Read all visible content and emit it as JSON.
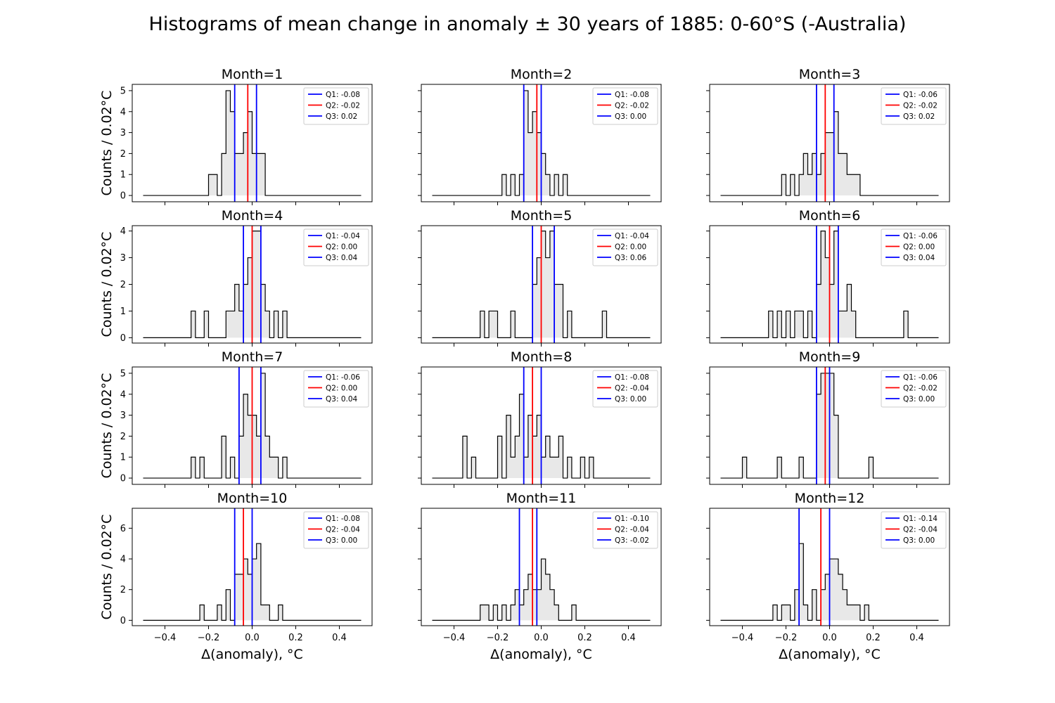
{
  "figure_title": "Histograms of mean change in anomaly ± 30 years of 1885: 0-60°S (-Australia)",
  "chart_data": {
    "type": "histogram",
    "title": "Histograms of mean change in anomaly ± 30 years of 1885: 0-60°S (-Australia)",
    "xlabel": "Δ(anomaly), °C",
    "ylabel": "Counts / 0.02°C",
    "xlim": [
      -0.55,
      0.55
    ],
    "xticks": [
      -0.4,
      -0.2,
      0.0,
      0.2,
      0.4
    ],
    "xtick_labels": [
      "−0.4",
      "−0.2",
      "0.0",
      "0.2",
      "0.4"
    ],
    "bin_start": -0.5,
    "bin_width": 0.02,
    "legend_placement": "upper right",
    "colors": {
      "median": "#ff0000",
      "quartiles": "#0000ff",
      "fill": "#e8e8e8",
      "outline": "#000000"
    },
    "rows": [
      {
        "ylim": [
          -0.3,
          5.3
        ],
        "yticks": [
          0,
          1,
          2,
          3,
          4,
          5
        ],
        "ytick_labels": [
          "0",
          "1",
          "2",
          "3",
          "4",
          "5"
        ]
      },
      {
        "ylim": [
          -0.2,
          4.2
        ],
        "yticks": [
          0,
          1,
          2,
          3,
          4
        ],
        "ytick_labels": [
          "0",
          "1",
          "2",
          "3",
          "4"
        ]
      },
      {
        "ylim": [
          -0.3,
          5.3
        ],
        "yticks": [
          0,
          1,
          2,
          3,
          4,
          5
        ],
        "ytick_labels": [
          "0",
          "1",
          "2",
          "3",
          "4",
          "5"
        ]
      },
      {
        "ylim": [
          -0.35,
          7.3
        ],
        "yticks": [
          0,
          2,
          4,
          6
        ],
        "ytick_labels": [
          "0",
          "2",
          "4",
          "6"
        ]
      }
    ],
    "panels": [
      {
        "title": "Month=1",
        "q1": -0.08,
        "q2": -0.02,
        "q3": 0.02,
        "legend": [
          "Q1: -0.08",
          "Q2: -0.02",
          "Q3: 0.02"
        ],
        "counts": [
          [
            -0.2,
            1
          ],
          [
            -0.18,
            1
          ],
          [
            -0.14,
            2
          ],
          [
            -0.12,
            5
          ],
          [
            -0.1,
            4
          ],
          [
            -0.08,
            2
          ],
          [
            -0.06,
            2
          ],
          [
            -0.04,
            3
          ],
          [
            -0.02,
            4
          ],
          [
            0,
            2
          ],
          [
            0.02,
            2
          ],
          [
            0.04,
            2
          ]
        ]
      },
      {
        "title": "Month=2",
        "q1": -0.08,
        "q2": -0.02,
        "q3": 0.0,
        "legend": [
          "Q1: -0.08",
          "Q2: -0.02",
          "Q3: 0.00"
        ],
        "counts": [
          [
            -0.18,
            1
          ],
          [
            -0.14,
            1
          ],
          [
            -0.1,
            1
          ],
          [
            -0.08,
            5
          ],
          [
            -0.06,
            3
          ],
          [
            -0.04,
            4
          ],
          [
            -0.02,
            3
          ],
          [
            0,
            2
          ],
          [
            0.02,
            1
          ],
          [
            0.06,
            1
          ],
          [
            0.1,
            1
          ]
        ]
      },
      {
        "title": "Month=3",
        "q1": -0.06,
        "q2": -0.02,
        "q3": 0.02,
        "legend": [
          "Q1: -0.06",
          "Q2: -0.02",
          "Q3: 0.02"
        ],
        "counts": [
          [
            -0.22,
            1
          ],
          [
            -0.18,
            1
          ],
          [
            -0.14,
            1
          ],
          [
            -0.12,
            2
          ],
          [
            -0.1,
            1
          ],
          [
            -0.08,
            2
          ],
          [
            -0.06,
            1
          ],
          [
            -0.04,
            2
          ],
          [
            -0.02,
            3
          ],
          [
            0,
            3
          ],
          [
            0.02,
            4
          ],
          [
            0.04,
            2
          ],
          [
            0.06,
            2
          ],
          [
            0.08,
            1
          ],
          [
            0.1,
            1
          ],
          [
            0.12,
            1
          ]
        ]
      },
      {
        "title": "Month=4",
        "q1": -0.04,
        "q2": 0.0,
        "q3": 0.04,
        "legend": [
          "Q1: -0.04",
          "Q2: 0.00",
          "Q3: 0.04"
        ],
        "counts": [
          [
            -0.28,
            1
          ],
          [
            -0.22,
            1
          ],
          [
            -0.12,
            1
          ],
          [
            -0.1,
            1
          ],
          [
            -0.08,
            2
          ],
          [
            -0.06,
            1
          ],
          [
            -0.04,
            2
          ],
          [
            -0.02,
            3
          ],
          [
            0,
            4
          ],
          [
            0.02,
            4
          ],
          [
            0.04,
            2
          ],
          [
            0.06,
            1
          ],
          [
            0.1,
            1
          ],
          [
            0.14,
            1
          ]
        ]
      },
      {
        "title": "Month=5",
        "q1": -0.04,
        "q2": 0.0,
        "q3": 0.06,
        "legend": [
          "Q1: -0.04",
          "Q2: 0.00",
          "Q3: 0.06"
        ],
        "counts": [
          [
            -0.28,
            1
          ],
          [
            -0.24,
            1
          ],
          [
            -0.22,
            1
          ],
          [
            -0.14,
            1
          ],
          [
            -0.04,
            2
          ],
          [
            -0.02,
            3
          ],
          [
            0,
            4
          ],
          [
            0.02,
            3
          ],
          [
            0.04,
            4
          ],
          [
            0.06,
            2
          ],
          [
            0.08,
            2
          ],
          [
            0.12,
            1
          ],
          [
            0.28,
            1
          ]
        ]
      },
      {
        "title": "Month=6",
        "q1": -0.06,
        "q2": 0.0,
        "q3": 0.04,
        "legend": [
          "Q1: -0.06",
          "Q2: 0.00",
          "Q3: 0.04"
        ],
        "counts": [
          [
            -0.28,
            1
          ],
          [
            -0.24,
            1
          ],
          [
            -0.2,
            1
          ],
          [
            -0.16,
            1
          ],
          [
            -0.14,
            1
          ],
          [
            -0.1,
            1
          ],
          [
            -0.06,
            2
          ],
          [
            -0.04,
            4
          ],
          [
            -0.02,
            3
          ],
          [
            0,
            2
          ],
          [
            0.02,
            4
          ],
          [
            0.04,
            1
          ],
          [
            0.06,
            1
          ],
          [
            0.08,
            2
          ],
          [
            0.1,
            1
          ],
          [
            0.34,
            1
          ]
        ]
      },
      {
        "title": "Month=7",
        "q1": -0.06,
        "q2": 0.0,
        "q3": 0.04,
        "legend": [
          "Q1: -0.06",
          "Q2: 0.00",
          "Q3: 0.04"
        ],
        "counts": [
          [
            -0.28,
            1
          ],
          [
            -0.24,
            1
          ],
          [
            -0.14,
            2
          ],
          [
            -0.1,
            1
          ],
          [
            -0.06,
            2
          ],
          [
            -0.04,
            4
          ],
          [
            -0.02,
            3
          ],
          [
            0,
            3
          ],
          [
            0.02,
            2
          ],
          [
            0.04,
            5
          ],
          [
            0.06,
            2
          ],
          [
            0.08,
            1
          ],
          [
            0.1,
            1
          ],
          [
            0.14,
            1
          ]
        ]
      },
      {
        "title": "Month=8",
        "q1": -0.08,
        "q2": -0.04,
        "q3": 0.0,
        "legend": [
          "Q1: -0.08",
          "Q2: -0.04",
          "Q3: 0.00"
        ],
        "counts": [
          [
            -0.36,
            2
          ],
          [
            -0.32,
            1
          ],
          [
            -0.2,
            2
          ],
          [
            -0.16,
            3
          ],
          [
            -0.14,
            1
          ],
          [
            -0.12,
            2
          ],
          [
            -0.1,
            4
          ],
          [
            -0.08,
            1
          ],
          [
            -0.06,
            3
          ],
          [
            -0.04,
            2
          ],
          [
            -0.02,
            3
          ],
          [
            0,
            1
          ],
          [
            0.02,
            2
          ],
          [
            0.04,
            1
          ],
          [
            0.06,
            1
          ],
          [
            0.08,
            2
          ],
          [
            0.12,
            1
          ],
          [
            0.18,
            1
          ],
          [
            0.22,
            1
          ]
        ]
      },
      {
        "title": "Month=9",
        "q1": -0.06,
        "q2": -0.02,
        "q3": 0.0,
        "legend": [
          "Q1: -0.06",
          "Q2: -0.02",
          "Q3: 0.00"
        ],
        "counts": [
          [
            -0.4,
            1
          ],
          [
            -0.24,
            1
          ],
          [
            -0.14,
            1
          ],
          [
            -0.06,
            4
          ],
          [
            -0.04,
            5
          ],
          [
            -0.02,
            5
          ],
          [
            0,
            5
          ],
          [
            0.02,
            3
          ],
          [
            0.18,
            1
          ]
        ]
      },
      {
        "title": "Month=10",
        "q1": -0.08,
        "q2": -0.04,
        "q3": 0.0,
        "legend": [
          "Q1: -0.08",
          "Q2: -0.04",
          "Q3: 0.00"
        ],
        "counts": [
          [
            -0.24,
            1
          ],
          [
            -0.16,
            1
          ],
          [
            -0.12,
            2
          ],
          [
            -0.08,
            3
          ],
          [
            -0.06,
            3
          ],
          [
            -0.04,
            4
          ],
          [
            -0.02,
            3
          ],
          [
            0,
            4
          ],
          [
            0.02,
            5
          ],
          [
            0.04,
            1
          ],
          [
            0.06,
            1
          ],
          [
            0.12,
            1
          ]
        ]
      },
      {
        "title": "Month=11",
        "q1": -0.1,
        "q2": -0.04,
        "q3": -0.02,
        "legend": [
          "Q1: -0.10",
          "Q2: -0.04",
          "Q3: -0.02"
        ],
        "counts": [
          [
            -0.28,
            1
          ],
          [
            -0.26,
            1
          ],
          [
            -0.22,
            1
          ],
          [
            -0.18,
            1
          ],
          [
            -0.14,
            1
          ],
          [
            -0.12,
            2
          ],
          [
            -0.1,
            1
          ],
          [
            -0.08,
            2
          ],
          [
            -0.06,
            3
          ],
          [
            -0.04,
            2
          ],
          [
            -0.02,
            2
          ],
          [
            0,
            4
          ],
          [
            0.02,
            3
          ],
          [
            0.04,
            2
          ],
          [
            0.06,
            1
          ],
          [
            0.14,
            1
          ]
        ]
      },
      {
        "title": "Month=12",
        "q1": -0.14,
        "q2": -0.04,
        "q3": 0.0,
        "legend": [
          "Q1: -0.14",
          "Q2: -0.04",
          "Q3: 0.00"
        ],
        "counts": [
          [
            -0.26,
            1
          ],
          [
            -0.22,
            1
          ],
          [
            -0.2,
            1
          ],
          [
            -0.16,
            2
          ],
          [
            -0.14,
            5
          ],
          [
            -0.12,
            1
          ],
          [
            -0.08,
            2
          ],
          [
            -0.04,
            2
          ],
          [
            -0.02,
            3
          ],
          [
            0,
            4
          ],
          [
            0.02,
            4
          ],
          [
            0.04,
            3
          ],
          [
            0.06,
            2
          ],
          [
            0.08,
            1
          ],
          [
            0.1,
            1
          ],
          [
            0.12,
            1
          ],
          [
            0.16,
            1
          ]
        ]
      }
    ]
  }
}
